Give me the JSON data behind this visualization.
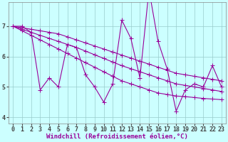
{
  "x": [
    0,
    1,
    2,
    3,
    4,
    5,
    6,
    7,
    8,
    9,
    10,
    11,
    12,
    13,
    14,
    15,
    16,
    17,
    18,
    19,
    20,
    21,
    22,
    23
  ],
  "y_main": [
    7.0,
    7.0,
    6.8,
    4.9,
    5.3,
    5.0,
    6.4,
    6.3,
    5.4,
    5.0,
    4.5,
    5.1,
    7.2,
    6.6,
    5.3,
    8.2,
    6.5,
    5.6,
    4.2,
    4.9,
    5.1,
    5.0,
    5.7,
    5.0
  ],
  "y_upper": [
    7.0,
    6.95,
    6.9,
    6.85,
    6.8,
    6.75,
    6.65,
    6.55,
    6.45,
    6.35,
    6.25,
    6.15,
    6.05,
    5.95,
    5.85,
    5.75,
    5.65,
    5.55,
    5.45,
    5.4,
    5.35,
    5.3,
    5.25,
    5.2
  ],
  "y_mid": [
    7.0,
    6.9,
    6.8,
    6.7,
    6.6,
    6.5,
    6.4,
    6.3,
    6.18,
    6.06,
    5.94,
    5.82,
    5.7,
    5.6,
    5.5,
    5.4,
    5.3,
    5.2,
    5.1,
    5.05,
    5.0,
    4.95,
    4.9,
    4.85
  ],
  "y_lower": [
    7.0,
    6.85,
    6.7,
    6.55,
    6.4,
    6.25,
    6.1,
    5.95,
    5.8,
    5.65,
    5.5,
    5.35,
    5.2,
    5.1,
    5.0,
    4.9,
    4.8,
    4.75,
    4.7,
    4.68,
    4.65,
    4.62,
    4.6,
    4.58
  ],
  "line_color": "#990099",
  "bg_color": "#ccffff",
  "grid_color": "#99cccc",
  "xlabel": "Windchill (Refroidissement éolien,°C)",
  "xlim": [
    -0.5,
    23.5
  ],
  "ylim": [
    3.8,
    7.8
  ],
  "yticks": [
    4,
    5,
    6,
    7
  ],
  "xticks": [
    0,
    1,
    2,
    3,
    4,
    5,
    6,
    7,
    8,
    9,
    10,
    11,
    12,
    13,
    14,
    15,
    16,
    17,
    18,
    19,
    20,
    21,
    22,
    23
  ],
  "marker": "+",
  "markersize": 4,
  "linewidth": 0.8,
  "xlabel_fontsize": 6.5,
  "tick_fontsize": 6
}
